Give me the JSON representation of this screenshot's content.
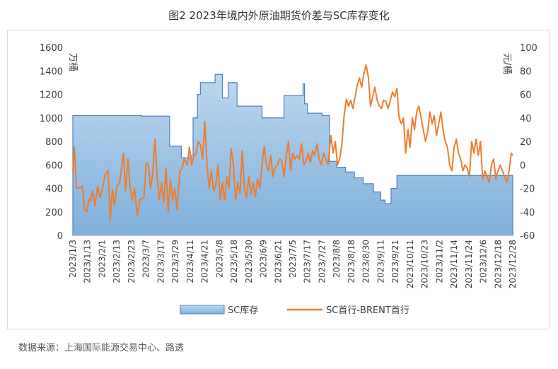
{
  "title": "图2 2023年境内外原油期货价差与SC库存变化",
  "source": "数据来源：上海国际能源交易中心、路透",
  "chart_data": {
    "type": "area+line",
    "title": "图2 2023年境内外原油期货价差与SC库存变化",
    "left_axis": {
      "label": "万桶",
      "range": [
        0,
        1600
      ],
      "ticks": [
        0,
        200,
        400,
        600,
        800,
        1000,
        1200,
        1400,
        1600
      ]
    },
    "right_axis": {
      "label": "元/桶",
      "range": [
        -60,
        100
      ],
      "ticks": [
        -60,
        -40,
        -20,
        0,
        20,
        40,
        60,
        80,
        100
      ]
    },
    "x_tick_labels": [
      "2023/1/3",
      "2023/1/13",
      "2023/2/1",
      "2023/2/13",
      "2023/2/23",
      "2023/3/7",
      "2023/3/17",
      "2023/3/29",
      "2023/4/11",
      "2023/4/21",
      "2023/5/8",
      "2023/5/18",
      "2023/5/30",
      "2023/6/9",
      "2023/6/21",
      "2023/7/5",
      "2023/7/17",
      "2023/7/27",
      "2023/8/8",
      "2023/8/18",
      "2023/8/30",
      "2023/9/11",
      "2023/9/21",
      "2023/10/11",
      "2023/10/23",
      "2023/11/2",
      "2023/11/14",
      "2023/11/24",
      "2023/12/6",
      "2023/12/18",
      "2023/12/28"
    ],
    "legend": "bottom",
    "series": [
      {
        "name": "SC库存",
        "type": "area",
        "axis": "left",
        "color": "#9dc3e6",
        "steps": [
          {
            "x": 0.0,
            "y": 1020
          },
          {
            "x": 4.7,
            "y": 1015
          },
          {
            "x": 6.6,
            "y": 760
          },
          {
            "x": 7.4,
            "y": 660
          },
          {
            "x": 8.0,
            "y": 680
          },
          {
            "x": 8.2,
            "y": 1000
          },
          {
            "x": 8.5,
            "y": 1200
          },
          {
            "x": 8.7,
            "y": 1300
          },
          {
            "x": 9.7,
            "y": 1370
          },
          {
            "x": 10.2,
            "y": 1170
          },
          {
            "x": 10.6,
            "y": 1300
          },
          {
            "x": 11.2,
            "y": 1100
          },
          {
            "x": 12.9,
            "y": 1000
          },
          {
            "x": 14.4,
            "y": 1190
          },
          {
            "x": 15.7,
            "y": 1290
          },
          {
            "x": 15.8,
            "y": 1120
          },
          {
            "x": 16.0,
            "y": 1040
          },
          {
            "x": 17.0,
            "y": 1020
          },
          {
            "x": 17.5,
            "y": 630
          },
          {
            "x": 18.0,
            "y": 580
          },
          {
            "x": 18.6,
            "y": 540
          },
          {
            "x": 19.2,
            "y": 490
          },
          {
            "x": 19.8,
            "y": 440
          },
          {
            "x": 20.5,
            "y": 370
          },
          {
            "x": 21.0,
            "y": 300
          },
          {
            "x": 21.3,
            "y": 270
          },
          {
            "x": 21.7,
            "y": 400
          },
          {
            "x": 22.1,
            "y": 510
          },
          {
            "x": 30.0,
            "y": 510
          }
        ]
      },
      {
        "name": "SC首行-BRENT首行",
        "type": "line",
        "axis": "right",
        "color": "#ed7d31",
        "points": [
          [
            0.0,
            -5
          ],
          [
            0.1,
            15
          ],
          [
            0.25,
            -20
          ],
          [
            0.4,
            -19
          ],
          [
            0.5,
            -20
          ],
          [
            0.65,
            -18
          ],
          [
            0.8,
            -38
          ],
          [
            0.95,
            -40
          ],
          [
            1.1,
            -29
          ],
          [
            1.2,
            -31
          ],
          [
            1.35,
            -22
          ],
          [
            1.5,
            -35
          ],
          [
            1.7,
            -18
          ],
          [
            1.85,
            -28
          ],
          [
            2.0,
            -22
          ],
          [
            2.2,
            -8
          ],
          [
            2.4,
            -5
          ],
          [
            2.55,
            -47
          ],
          [
            2.7,
            -21
          ],
          [
            2.85,
            -35
          ],
          [
            3.0,
            -18
          ],
          [
            3.2,
            -15
          ],
          [
            3.45,
            10
          ],
          [
            3.6,
            -22
          ],
          [
            3.75,
            5
          ],
          [
            3.9,
            -18
          ],
          [
            4.05,
            -30
          ],
          [
            4.2,
            -20
          ],
          [
            4.4,
            -43
          ],
          [
            4.6,
            -29
          ],
          [
            4.85,
            -28
          ],
          [
            5.0,
            2
          ],
          [
            5.15,
            0
          ],
          [
            5.3,
            -20
          ],
          [
            5.45,
            -7
          ],
          [
            5.6,
            22
          ],
          [
            5.75,
            -10
          ],
          [
            5.9,
            -30
          ],
          [
            6.05,
            -15
          ],
          [
            6.2,
            -32
          ],
          [
            6.35,
            -3
          ],
          [
            6.5,
            -40
          ],
          [
            6.65,
            -12
          ],
          [
            6.8,
            -30
          ],
          [
            6.95,
            -20
          ],
          [
            7.1,
            -38
          ],
          [
            7.3,
            -5
          ],
          [
            7.45,
            -3
          ],
          [
            7.6,
            5
          ],
          [
            7.8,
            0
          ],
          [
            7.95,
            15
          ],
          [
            8.1,
            0
          ],
          [
            8.25,
            7
          ],
          [
            8.4,
            10
          ],
          [
            8.55,
            20
          ],
          [
            8.7,
            17
          ],
          [
            8.85,
            5
          ],
          [
            9.0,
            37
          ],
          [
            9.15,
            0
          ],
          [
            9.3,
            -20
          ],
          [
            9.45,
            -5
          ],
          [
            9.6,
            -22
          ],
          [
            9.75,
            -17
          ],
          [
            9.9,
            0
          ],
          [
            10.05,
            -30
          ],
          [
            10.2,
            -15
          ],
          [
            10.35,
            -30
          ],
          [
            10.5,
            -10
          ],
          [
            10.65,
            -20
          ],
          [
            10.8,
            14
          ],
          [
            10.95,
            0
          ],
          [
            11.1,
            -30
          ],
          [
            11.25,
            -15
          ],
          [
            11.4,
            -25
          ],
          [
            11.55,
            12
          ],
          [
            11.7,
            -20
          ],
          [
            11.85,
            -28
          ],
          [
            12.0,
            -10
          ],
          [
            12.15,
            -25
          ],
          [
            12.3,
            -15
          ],
          [
            12.45,
            -27
          ],
          [
            12.6,
            -12
          ],
          [
            12.75,
            -20
          ],
          [
            12.9,
            0
          ],
          [
            13.05,
            16
          ],
          [
            13.2,
            0
          ],
          [
            13.35,
            -5
          ],
          [
            13.5,
            8
          ],
          [
            13.65,
            -10
          ],
          [
            13.8,
            -2
          ],
          [
            13.95,
            0
          ],
          [
            14.1,
            5
          ],
          [
            14.25,
            3
          ],
          [
            14.4,
            -10
          ],
          [
            14.55,
            7
          ],
          [
            14.7,
            20
          ],
          [
            14.85,
            -5
          ],
          [
            15.0,
            10
          ],
          [
            15.15,
            5
          ],
          [
            15.3,
            8
          ],
          [
            15.45,
            5
          ],
          [
            15.6,
            18
          ],
          [
            15.75,
            0
          ],
          [
            15.9,
            3
          ],
          [
            16.05,
            10
          ],
          [
            16.2,
            2
          ],
          [
            16.35,
            12
          ],
          [
            16.5,
            8
          ],
          [
            16.65,
            18
          ],
          [
            16.8,
            5
          ],
          [
            16.95,
            0
          ],
          [
            17.1,
            10
          ],
          [
            17.25,
            5
          ],
          [
            17.4,
            0
          ],
          [
            17.6,
            25
          ],
          [
            17.75,
            10
          ],
          [
            17.9,
            20
          ],
          [
            18.05,
            0
          ],
          [
            18.2,
            5
          ],
          [
            18.35,
            18
          ],
          [
            18.5,
            42
          ],
          [
            18.65,
            56
          ],
          [
            18.8,
            50
          ],
          [
            18.95,
            55
          ],
          [
            19.1,
            48
          ],
          [
            19.25,
            58
          ],
          [
            19.4,
            68
          ],
          [
            19.55,
            74
          ],
          [
            19.7,
            66
          ],
          [
            19.85,
            78
          ],
          [
            20.0,
            85
          ],
          [
            20.15,
            75
          ],
          [
            20.3,
            50
          ],
          [
            20.45,
            58
          ],
          [
            20.6,
            66
          ],
          [
            20.75,
            55
          ],
          [
            20.9,
            50
          ],
          [
            21.05,
            48
          ],
          [
            21.2,
            55
          ],
          [
            21.35,
            54
          ],
          [
            21.5,
            48
          ],
          [
            21.65,
            55
          ],
          [
            21.8,
            62
          ],
          [
            21.95,
            58
          ],
          [
            22.1,
            65
          ],
          [
            22.25,
            40
          ],
          [
            22.4,
            35
          ],
          [
            22.55,
            40
          ],
          [
            22.7,
            10
          ],
          [
            22.85,
            30
          ],
          [
            23.0,
            15
          ],
          [
            23.15,
            40
          ],
          [
            23.3,
            30
          ],
          [
            23.45,
            45
          ],
          [
            23.6,
            50
          ],
          [
            23.75,
            40
          ],
          [
            23.9,
            30
          ],
          [
            24.05,
            20
          ],
          [
            24.2,
            28
          ],
          [
            24.35,
            45
          ],
          [
            24.5,
            35
          ],
          [
            24.65,
            42
          ],
          [
            24.8,
            25
          ],
          [
            24.95,
            35
          ],
          [
            25.1,
            45
          ],
          [
            25.25,
            30
          ],
          [
            25.4,
            20
          ],
          [
            25.55,
            15
          ],
          [
            25.7,
            0
          ],
          [
            25.85,
            -5
          ],
          [
            26.0,
            15
          ],
          [
            26.15,
            22
          ],
          [
            26.3,
            10
          ],
          [
            26.45,
            5
          ],
          [
            26.6,
            -5
          ],
          [
            26.75,
            0
          ],
          [
            26.9,
            -3
          ],
          [
            27.05,
            -10
          ],
          [
            27.2,
            20
          ],
          [
            27.35,
            10
          ],
          [
            27.5,
            22
          ],
          [
            27.65,
            8
          ],
          [
            27.8,
            20
          ],
          [
            27.95,
            -12
          ],
          [
            28.1,
            -5
          ],
          [
            28.25,
            -10
          ],
          [
            28.4,
            -15
          ],
          [
            28.55,
            0
          ],
          [
            28.7,
            5
          ],
          [
            28.85,
            -12
          ],
          [
            29.0,
            -5
          ],
          [
            29.15,
            0
          ],
          [
            29.3,
            -5
          ],
          [
            29.45,
            -10
          ],
          [
            29.6,
            -15
          ],
          [
            29.75,
            -5
          ],
          [
            29.9,
            10
          ],
          [
            30.0,
            8
          ]
        ]
      }
    ]
  }
}
